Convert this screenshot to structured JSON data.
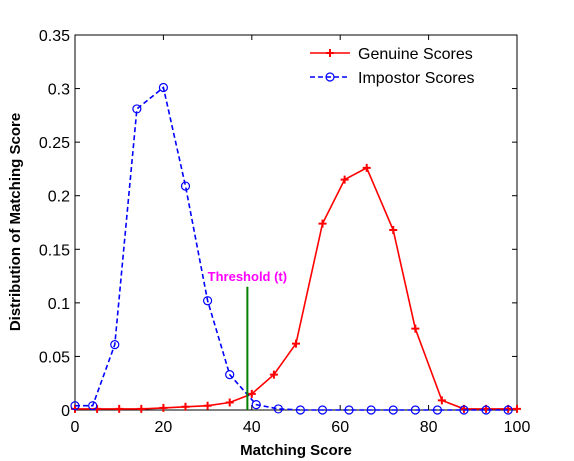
{
  "chart_data": {
    "type": "line",
    "title": "",
    "xlabel": "Matching Score",
    "ylabel": "Distribution of Matching Score",
    "xlim": [
      0,
      100
    ],
    "ylim": [
      0,
      0.35
    ],
    "xticks": [
      "0",
      "20",
      "40",
      "60",
      "80",
      "100"
    ],
    "yticks": [
      "0",
      "0.05",
      "0.1",
      "0.15",
      "0.2",
      "0.25",
      "0.3",
      "0.35"
    ],
    "grid": false,
    "legend_position": "top-right",
    "series": [
      {
        "name": "Genuine Scores",
        "color": "#ff0000",
        "line_style": "solid",
        "marker": "plus",
        "x": [
          0,
          5,
          10,
          15,
          20,
          25,
          30,
          35,
          40,
          45,
          50,
          56,
          61,
          66,
          72,
          77,
          83,
          88,
          93,
          98,
          100
        ],
        "y": [
          0.001,
          0.001,
          0.001,
          0.001,
          0.002,
          0.003,
          0.004,
          0.007,
          0.015,
          0.033,
          0.062,
          0.174,
          0.215,
          0.226,
          0.168,
          0.076,
          0.009,
          0.001,
          0.001,
          0.001,
          0.001
        ]
      },
      {
        "name": "Impostor Scores",
        "color": "#0000ff",
        "line_style": "dashed",
        "marker": "circle",
        "x": [
          0,
          4,
          9,
          14,
          20,
          25,
          30,
          35,
          41,
          46,
          51,
          56,
          62,
          67,
          72,
          77,
          82,
          88,
          93,
          98
        ],
        "y": [
          0.004,
          0.004,
          0.061,
          0.281,
          0.301,
          0.209,
          0.102,
          0.033,
          0.005,
          0.001,
          0,
          0,
          0,
          0,
          0,
          0,
          0,
          0,
          0,
          0
        ]
      }
    ],
    "annotations": [
      {
        "text": "Threshold (t)",
        "color": "#ff00ff",
        "line_color": "#008000",
        "x": 39,
        "y_from": 0,
        "y_to": 0.115
      }
    ]
  }
}
